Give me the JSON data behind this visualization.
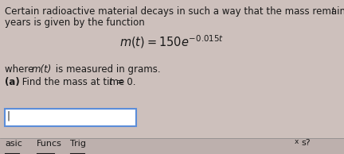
{
  "bg_color": "#cdc0bc",
  "text_color": "#1a1a1a",
  "fig_w": 4.32,
  "fig_h": 1.94,
  "dpi": 100,
  "fs_main": 8.5,
  "fs_formula": 10.5,
  "fs_tab": 8.0,
  "line1_plain": "Certain radioactive material decays in such a way that the mass remaining after ",
  "line1_italic": "t",
  "line2": "years is given by the function",
  "formula": "$\\mathit{m}(t) = 150e^{-0.015t}$",
  "where_plain1": "where ",
  "where_italic": "m(t)",
  "where_plain2": " is measured in grams.",
  "parta_bold": "(a)",
  "parta_plain": " Find the mass at time ",
  "parta_italic": "t",
  "parta_end": " = 0.",
  "tab_labels": [
    "asic",
    "Funcs",
    "Trig"
  ],
  "bottom_x": "x",
  "bottom_s": "s?",
  "input_border_color": "#5b8dd9",
  "input_fill": "#ffffff",
  "cursor_char": "|",
  "tab_bar_color": "#bdb0ad"
}
